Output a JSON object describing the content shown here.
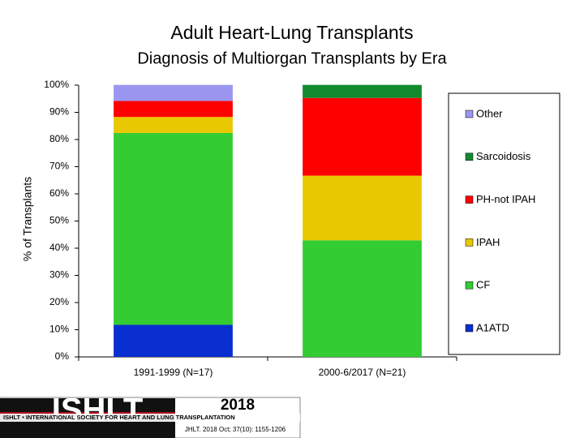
{
  "chart_data": {
    "type": "stacked_bar",
    "title": "Adult Heart-Lung Transplants",
    "subtitle": "Diagnosis of Multiorgan Transplants by Era",
    "y_label": "% of Transplants",
    "categories": [
      "1991-1999 (N=17)",
      "2000-6/2017 (N=21)"
    ],
    "series": [
      {
        "name": "A1ATD",
        "color": "#0a2fd0",
        "values": [
          11.8,
          0
        ]
      },
      {
        "name": "CF",
        "color": "#33cc33",
        "values": [
          70.6,
          42.9
        ]
      },
      {
        "name": "IPAH",
        "color": "#e8c800",
        "values": [
          5.9,
          23.8
        ]
      },
      {
        "name": "PH-not IPAH",
        "color": "#ff0000",
        "values": [
          5.9,
          28.6
        ]
      },
      {
        "name": "Sarcoidosis",
        "color": "#128a2e",
        "values": [
          0,
          4.8
        ]
      },
      {
        "name": "Other",
        "color": "#9a96f0",
        "values": [
          5.9,
          0
        ]
      }
    ],
    "ylim": [
      0,
      100
    ],
    "yticks": [
      {
        "value": 0,
        "label": "0%"
      },
      {
        "value": 10,
        "label": "10%"
      },
      {
        "value": 20,
        "label": "20%"
      },
      {
        "value": 30,
        "label": "30%"
      },
      {
        "value": 40,
        "label": "40%"
      },
      {
        "value": 50,
        "label": "50%"
      },
      {
        "value": 60,
        "label": "60%"
      },
      {
        "value": 70,
        "label": "70%"
      },
      {
        "value": 80,
        "label": "80%"
      },
      {
        "value": 90,
        "label": "90%"
      },
      {
        "value": 100,
        "label": "100%"
      }
    ],
    "grid": false,
    "legend": "right"
  },
  "footer": {
    "logo": "ISHLT",
    "society": "ISHLT • INTERNATIONAL SOCIETY FOR HEART AND LUNG TRANSPLANTATION",
    "year": "2018",
    "citation": "JHLT. 2018 Oct; 37(10): 1155-1206"
  }
}
